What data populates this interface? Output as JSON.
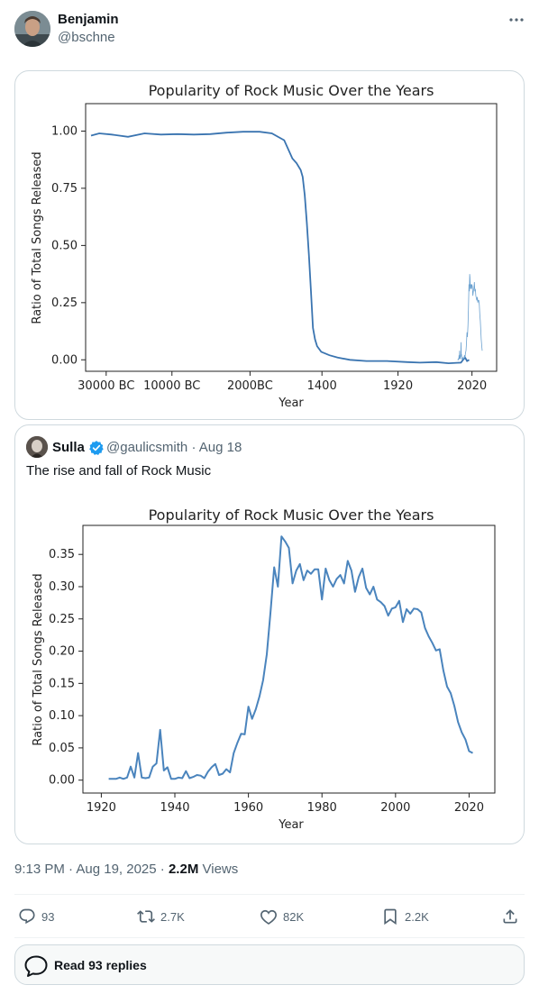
{
  "tweet": {
    "author": {
      "name": "Benjamin",
      "handle": "@bschne"
    },
    "timestamp": "9:13 PM · Aug 19, 2025",
    "views_count": "2.2M",
    "views_label": "Views",
    "actions": {
      "replies": "93",
      "reposts": "2.7K",
      "likes": "82K",
      "bookmarks": "2.2K"
    },
    "read_replies_label": "Read 93 replies"
  },
  "quote": {
    "author": {
      "name": "Sulla",
      "handle": "@gaulicsmith",
      "date": "Aug 18"
    },
    "text": "The rise and fall of Rock Music"
  },
  "chart_data": [
    {
      "type": "line",
      "title": "Popularity of Rock Music Over the Years",
      "xlabel": "Year",
      "ylabel": "Ratio of Total Songs Released",
      "xticks": [
        "30000 BC",
        "10000 BC",
        "2000BC",
        "1400",
        "1920",
        "2020"
      ],
      "yticks": [
        "0.00",
        "0.25",
        "0.50",
        "0.75",
        "1.00"
      ],
      "ylim": [
        -0.05,
        1.12
      ],
      "series": [
        {
          "color": "#3a74b0",
          "x": [
            0,
            0.02,
            0.05,
            0.09,
            0.13,
            0.17,
            0.21,
            0.25,
            0.29,
            0.33,
            0.37,
            0.41,
            0.44,
            0.47,
            0.49,
            0.5,
            0.51,
            0.515,
            0.52,
            0.525,
            0.53,
            0.535,
            0.54,
            0.545,
            0.55,
            0.56,
            0.58,
            0.6,
            0.63,
            0.67,
            0.72,
            0.77,
            0.8,
            0.84,
            0.87,
            0.9,
            0.905,
            0.91,
            0.915,
            0.92
          ],
          "y": [
            0.98,
            0.99,
            0.985,
            0.975,
            0.99,
            0.985,
            0.987,
            0.985,
            0.987,
            0.993,
            0.997,
            0.997,
            0.99,
            0.96,
            0.88,
            0.86,
            0.83,
            0.8,
            0.72,
            0.6,
            0.46,
            0.3,
            0.14,
            0.09,
            0.06,
            0.035,
            0.02,
            0.01,
            0.0,
            -0.005,
            -0.005,
            -0.01,
            -0.012,
            -0.01,
            -0.015,
            -0.012,
            0.0,
            0.01,
            -0.005,
            0.0
          ]
        },
        {
          "color": "#6aa0cf",
          "x": [
            1920,
            1921,
            1922,
            1923,
            1924,
            1925,
            1926,
            1927,
            1928,
            1929,
            1930,
            1931,
            1932,
            1933,
            1934,
            1935,
            1936,
            1937,
            1938,
            1939,
            1940,
            1942,
            1944,
            1946,
            1948,
            1950,
            1952,
            1954,
            1956,
            1958,
            1960,
            1962,
            1964,
            1966,
            1968,
            1969,
            1970,
            1972,
            1974,
            1976,
            1978,
            1980,
            1982,
            1984,
            1986,
            1988,
            1990,
            1992,
            1994,
            1996,
            1998,
            2000,
            2002,
            2004,
            2006,
            2008,
            2010,
            2012,
            2014,
            2016,
            2018,
            2020
          ],
          "y": [
            0.0,
            0.0,
            0.002,
            0.004,
            0.002,
            0.004,
            0.02,
            0.005,
            0.04,
            0.005,
            0.005,
            0.005,
            0.02,
            0.025,
            0.077,
            0.018,
            0.02,
            0.005,
            0.003,
            0.005,
            0.003,
            0.01,
            0.005,
            0.008,
            0.02,
            0.01,
            0.03,
            0.04,
            0.07,
            0.12,
            0.1,
            0.15,
            0.22,
            0.33,
            0.3,
            0.375,
            0.36,
            0.31,
            0.33,
            0.31,
            0.33,
            0.32,
            0.28,
            0.3,
            0.31,
            0.34,
            0.3,
            0.31,
            0.28,
            0.27,
            0.26,
            0.275,
            0.25,
            0.26,
            0.26,
            0.24,
            0.2,
            0.17,
            0.13,
            0.09,
            0.06,
            0.04
          ]
        }
      ]
    },
    {
      "type": "line",
      "title": "Popularity of Rock Music Over the Years",
      "xlabel": "Year",
      "ylabel": "Ratio of Total Songs Released",
      "xticks": [
        "1920",
        "1940",
        "1960",
        "1980",
        "2000",
        "2020"
      ],
      "yticks": [
        "0.00",
        "0.05",
        "0.10",
        "0.15",
        "0.20",
        "0.25",
        "0.30",
        "0.35"
      ],
      "xlim": [
        1915,
        2027
      ],
      "ylim": [
        -0.02,
        0.395
      ],
      "x": [
        1922,
        1923,
        1924,
        1925,
        1926,
        1927,
        1928,
        1929,
        1930,
        1931,
        1932,
        1933,
        1934,
        1935,
        1936,
        1937,
        1938,
        1939,
        1940,
        1941,
        1942,
        1943,
        1944,
        1945,
        1946,
        1947,
        1948,
        1949,
        1950,
        1951,
        1952,
        1953,
        1954,
        1955,
        1956,
        1957,
        1958,
        1959,
        1960,
        1961,
        1962,
        1963,
        1964,
        1965,
        1966,
        1967,
        1968,
        1969,
        1970,
        1971,
        1972,
        1973,
        1974,
        1975,
        1976,
        1977,
        1978,
        1979,
        1980,
        1981,
        1982,
        1983,
        1984,
        1985,
        1986,
        1987,
        1988,
        1989,
        1990,
        1991,
        1992,
        1993,
        1994,
        1995,
        1996,
        1997,
        1998,
        1999,
        2000,
        2001,
        2002,
        2003,
        2004,
        2005,
        2006,
        2007,
        2008,
        2009,
        2010,
        2011,
        2012,
        2013,
        2014,
        2015,
        2016,
        2017,
        2018,
        2019,
        2020,
        2021
      ],
      "series": [
        {
          "color": "#4a84bd",
          "values": [
            0.002,
            0.002,
            0.002,
            0.004,
            0.002,
            0.004,
            0.021,
            0.004,
            0.042,
            0.004,
            0.003,
            0.004,
            0.021,
            0.026,
            0.078,
            0.015,
            0.02,
            0.002,
            0.002,
            0.004,
            0.003,
            0.014,
            0.003,
            0.005,
            0.008,
            0.007,
            0.003,
            0.013,
            0.02,
            0.025,
            0.008,
            0.01,
            0.017,
            0.012,
            0.042,
            0.058,
            0.072,
            0.071,
            0.114,
            0.095,
            0.11,
            0.13,
            0.155,
            0.195,
            0.26,
            0.33,
            0.3,
            0.378,
            0.37,
            0.36,
            0.305,
            0.325,
            0.335,
            0.31,
            0.325,
            0.32,
            0.327,
            0.327,
            0.28,
            0.328,
            0.31,
            0.3,
            0.312,
            0.318,
            0.305,
            0.34,
            0.325,
            0.292,
            0.315,
            0.328,
            0.298,
            0.288,
            0.3,
            0.28,
            0.276,
            0.27,
            0.255,
            0.266,
            0.268,
            0.278,
            0.245,
            0.265,
            0.258,
            0.266,
            0.265,
            0.26,
            0.236,
            0.223,
            0.213,
            0.201,
            0.203,
            0.17,
            0.145,
            0.135,
            0.115,
            0.09,
            0.074,
            0.063,
            0.045,
            0.042
          ]
        }
      ]
    }
  ]
}
